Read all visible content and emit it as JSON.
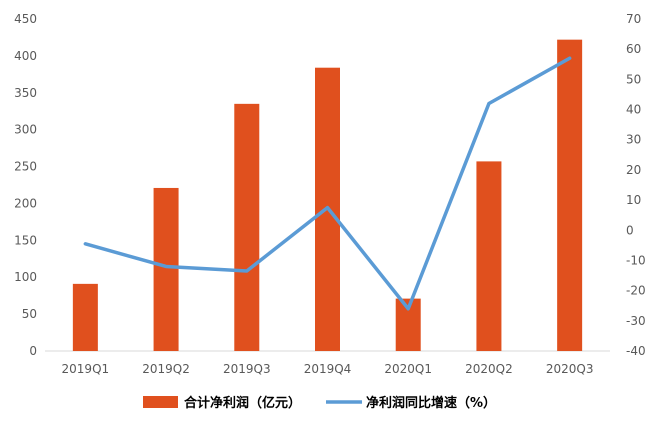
{
  "chart_data": {
    "type": "bar",
    "categories": [
      "2019Q1",
      "2019Q2",
      "2019Q3",
      "2019Q4",
      "2020Q1",
      "2020Q2",
      "2020Q3"
    ],
    "series": [
      {
        "name": "合计净利润（亿元）",
        "type": "bar",
        "axis": "left",
        "color": "#E0501E",
        "values": [
          91,
          221,
          335,
          384,
          71,
          257,
          422
        ]
      },
      {
        "name": "净利润同比增速（%）",
        "type": "line",
        "axis": "right",
        "color": "#5B9BD5",
        "values": [
          -4.5,
          -12,
          -13.5,
          7.5,
          -26,
          42,
          57
        ]
      }
    ],
    "y_left": {
      "min": 0,
      "max": 450,
      "step": 50
    },
    "y_right": {
      "min": -40,
      "max": 70,
      "step": 10
    },
    "grid": false,
    "legend_position": "bottom"
  }
}
